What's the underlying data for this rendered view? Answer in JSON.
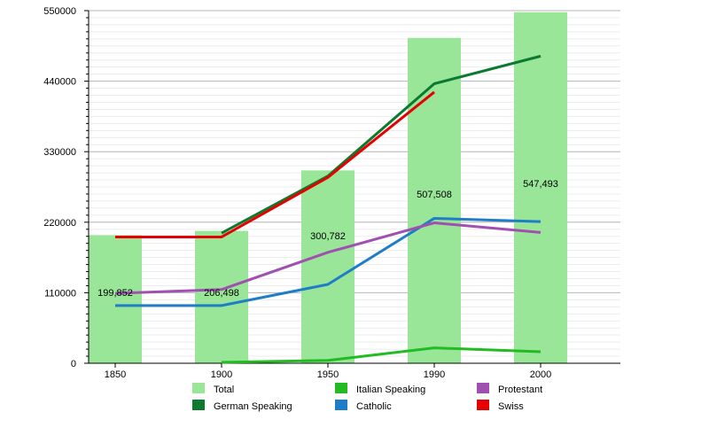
{
  "chart_data": {
    "type": "bar",
    "title": "",
    "xlabel": "",
    "ylabel": "",
    "ylim": [
      0,
      550000
    ],
    "y_ticks": [
      "0",
      "110000",
      "220000",
      "330000",
      "440000",
      "550000"
    ],
    "categories": [
      "1850",
      "1900",
      "1950",
      "1990",
      "2000"
    ],
    "grid": true,
    "legend_position": "bottom",
    "series": [
      {
        "name": "Total",
        "kind": "bar",
        "color": "#99e699",
        "values": [
          199852,
          206498,
          300782,
          507508,
          547493
        ],
        "labels": [
          "199,852",
          "206,498",
          "300,782",
          "507,508",
          "547,493"
        ]
      },
      {
        "name": "German Speaking",
        "kind": "line",
        "color": "#0b7a2e",
        "values": [
          null,
          203000,
          292000,
          436000,
          479000
        ]
      },
      {
        "name": "Italian Speaking",
        "kind": "line",
        "color": "#22bb22",
        "values": [
          null,
          1500,
          4500,
          24000,
          18000
        ]
      },
      {
        "name": "Catholic",
        "kind": "line",
        "color": "#1f7dc8",
        "values": [
          90000,
          90000,
          123000,
          226000,
          221000
        ]
      },
      {
        "name": "Protestant",
        "kind": "line",
        "color": "#a050b0",
        "values": [
          109000,
          115000,
          173000,
          219000,
          204000
        ]
      },
      {
        "name": "Swiss",
        "kind": "line",
        "color": "#e60000",
        "values": [
          197000,
          197000,
          290000,
          423000,
          null
        ]
      }
    ]
  }
}
